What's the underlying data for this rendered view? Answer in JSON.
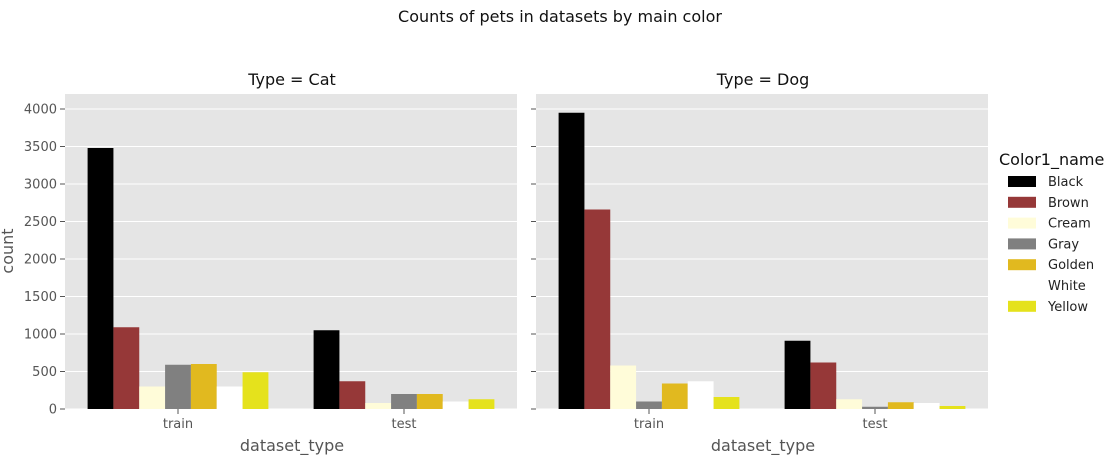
{
  "chart_data": {
    "type": "bar",
    "title": "Counts of pets in datasets by main color",
    "xlabel": "dataset_type",
    "ylabel": "count",
    "ylim": [
      0,
      4200
    ],
    "yticks": [
      0,
      500,
      1000,
      1500,
      2000,
      2500,
      3000,
      3500,
      4000
    ],
    "grid": true,
    "legend": {
      "title": "Color1_name",
      "placement": "right",
      "entries": [
        {
          "name": "Black",
          "color": "#000000"
        },
        {
          "name": "Brown",
          "color": "#963838"
        },
        {
          "name": "Cream",
          "color": "#fffcd9"
        },
        {
          "name": "Gray",
          "color": "#808080"
        },
        {
          "name": "Golden",
          "color": "#e1b91f"
        },
        {
          "name": "White",
          "color": "#ffffff"
        },
        {
          "name": "Yellow",
          "color": "#e5e21c"
        }
      ]
    },
    "categories": [
      "train",
      "test"
    ],
    "panels": [
      {
        "title": "Type = Cat",
        "series": [
          {
            "name": "Black",
            "values": [
              3480,
              1050
            ]
          },
          {
            "name": "Brown",
            "values": [
              1090,
              370
            ]
          },
          {
            "name": "Cream",
            "values": [
              300,
              80
            ]
          },
          {
            "name": "Gray",
            "values": [
              590,
              200
            ]
          },
          {
            "name": "Golden",
            "values": [
              600,
              200
            ]
          },
          {
            "name": "White",
            "values": [
              300,
              100
            ]
          },
          {
            "name": "Yellow",
            "values": [
              490,
              130
            ]
          }
        ]
      },
      {
        "title": "Type = Dog",
        "series": [
          {
            "name": "Black",
            "values": [
              3950,
              910
            ]
          },
          {
            "name": "Brown",
            "values": [
              2660,
              620
            ]
          },
          {
            "name": "Cream",
            "values": [
              580,
              130
            ]
          },
          {
            "name": "Gray",
            "values": [
              100,
              30
            ]
          },
          {
            "name": "Golden",
            "values": [
              340,
              90
            ]
          },
          {
            "name": "White",
            "values": [
              370,
              80
            ]
          },
          {
            "name": "Yellow",
            "values": [
              160,
              40
            ]
          }
        ]
      }
    ]
  }
}
